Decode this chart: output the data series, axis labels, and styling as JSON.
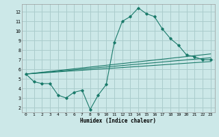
{
  "xlabel": "Humidex (Indice chaleur)",
  "bg_color": "#cce8e8",
  "grid_color": "#aacccc",
  "line_color": "#1a7a6a",
  "xlim": [
    -0.5,
    23.5
  ],
  "ylim": [
    1.5,
    12.8
  ],
  "yticks": [
    2,
    3,
    4,
    5,
    6,
    7,
    8,
    9,
    10,
    11,
    12
  ],
  "xticks": [
    0,
    1,
    2,
    3,
    4,
    5,
    6,
    7,
    8,
    9,
    10,
    11,
    12,
    13,
    14,
    15,
    16,
    17,
    18,
    19,
    20,
    21,
    22,
    23
  ],
  "main_line_x": [
    0,
    1,
    2,
    3,
    4,
    5,
    6,
    7,
    8,
    9,
    10,
    11,
    12,
    13,
    14,
    15,
    16,
    17,
    18,
    19,
    20,
    21,
    22,
    23
  ],
  "main_line_y": [
    5.5,
    4.7,
    4.5,
    4.5,
    3.3,
    3.0,
    3.6,
    3.8,
    1.8,
    3.3,
    4.4,
    8.8,
    11.0,
    11.5,
    12.4,
    11.8,
    11.5,
    10.2,
    9.2,
    8.5,
    7.5,
    7.3,
    7.0,
    7.0
  ],
  "line2_x": [
    0,
    23
  ],
  "line2_y": [
    5.5,
    6.8
  ],
  "line3_x": [
    0,
    23
  ],
  "line3_y": [
    5.5,
    7.2
  ],
  "line4_x": [
    0,
    23
  ],
  "line4_y": [
    5.5,
    7.6
  ]
}
